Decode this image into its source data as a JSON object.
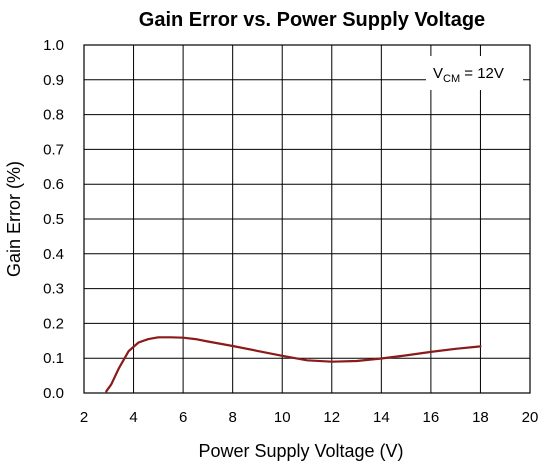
{
  "chart_data": {
    "type": "line",
    "title": "Gain Error vs. Power Supply Voltage",
    "xlabel": "Power Supply Voltage (V)",
    "ylabel": "Gain Error (%)",
    "xlim": [
      2,
      20
    ],
    "ylim": [
      0,
      1.0
    ],
    "xticks": [
      2,
      4,
      6,
      8,
      10,
      12,
      14,
      16,
      18,
      20
    ],
    "yticks": [
      0.0,
      0.1,
      0.2,
      0.3,
      0.4,
      0.5,
      0.6,
      0.7,
      0.8,
      0.9,
      1.0
    ],
    "xtick_labels": [
      "2",
      "4",
      "6",
      "8",
      "10",
      "12",
      "14",
      "16",
      "18",
      "20"
    ],
    "ytick_labels": [
      "0.0",
      "0.1",
      "0.2",
      "0.3",
      "0.4",
      "0.5",
      "0.6",
      "0.7",
      "0.8",
      "0.9",
      "1.0"
    ],
    "grid": true,
    "legend": "none",
    "annotation": {
      "prefix": "V",
      "subscript": "CM",
      "suffix": " = 12V",
      "placement": "top-right"
    },
    "series": [
      {
        "color": "#8b1a1a",
        "x": [
          2.9,
          3.1,
          3.4,
          3.8,
          4.2,
          4.6,
          5.0,
          5.5,
          6.0,
          6.5,
          7.0,
          8.0,
          9.0,
          10.0,
          11.0,
          12.0,
          13.0,
          14.0,
          15.0,
          16.0,
          17.0,
          18.0
        ],
        "y": [
          0.005,
          0.025,
          0.07,
          0.12,
          0.145,
          0.155,
          0.16,
          0.16,
          0.159,
          0.155,
          0.148,
          0.135,
          0.121,
          0.107,
          0.094,
          0.09,
          0.092,
          0.099,
          0.108,
          0.118,
          0.127,
          0.134
        ]
      }
    ]
  }
}
